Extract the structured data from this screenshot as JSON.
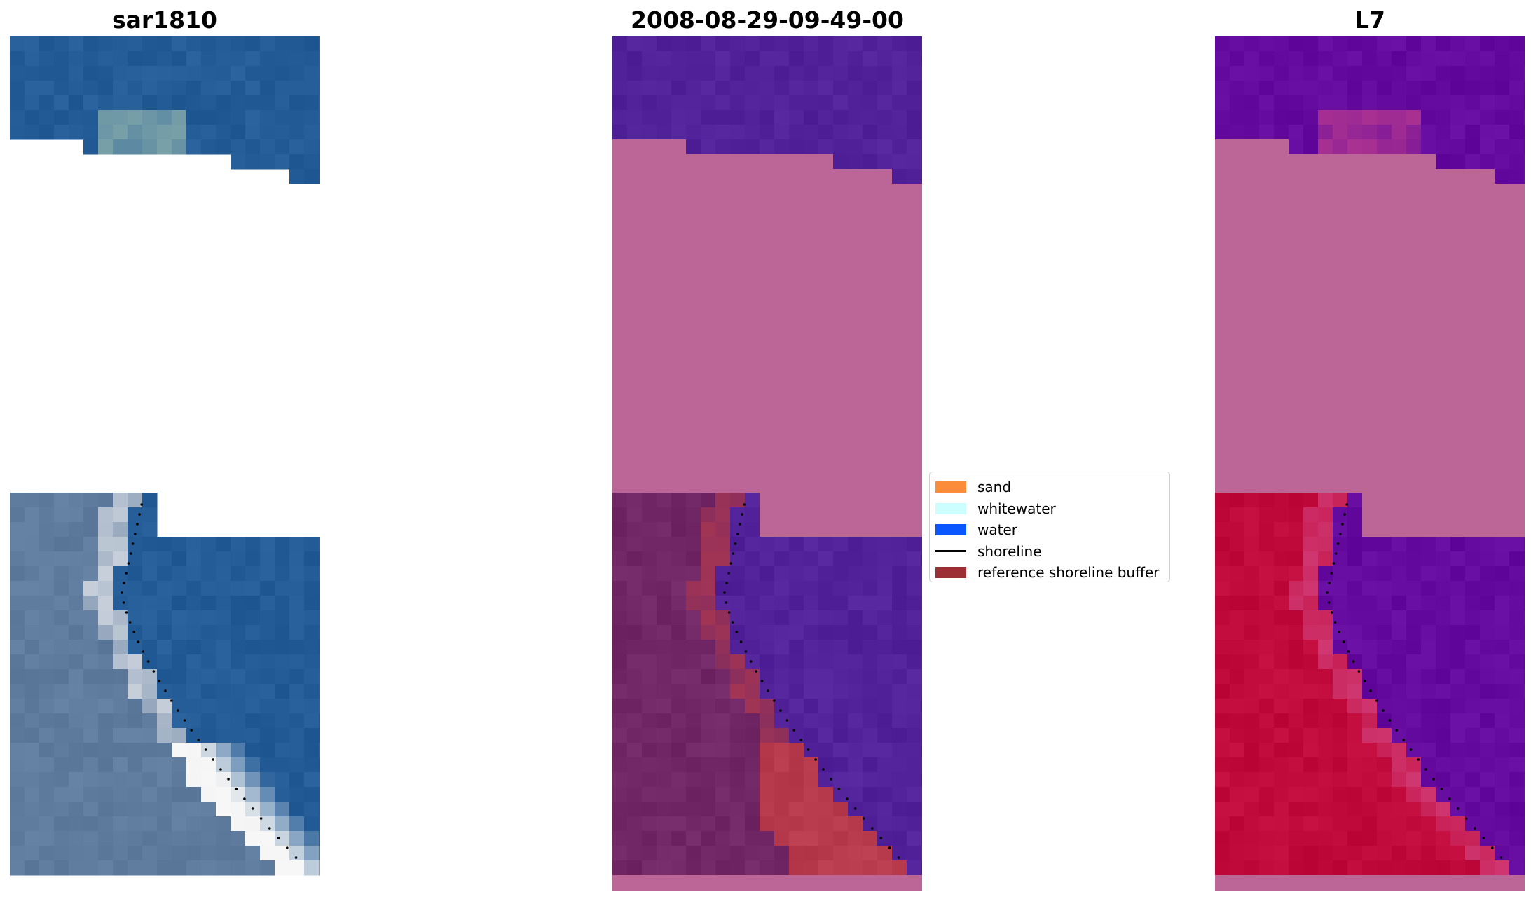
{
  "panels": [
    {
      "title": "sar1810",
      "colors": [
        "#235c96",
        "#8fb2ad",
        "#5f7b9e",
        "#f4f4f4"
      ]
    },
    {
      "title": "2008-08-29-09-49-00",
      "colors": [
        "#52229a",
        "#bc6697",
        "#712765",
        "#b73b4d"
      ]
    },
    {
      "title": "L7",
      "colors": [
        "#640a9e",
        "#bc6697",
        "#c10a3c",
        "#d64b88"
      ]
    }
  ],
  "legend": {
    "items": [
      {
        "label": "sand",
        "color": "#fb8c3a",
        "kind": "patch"
      },
      {
        "label": "whitewater",
        "color": "#ccfdff",
        "kind": "patch"
      },
      {
        "label": "water",
        "color": "#0a56ff",
        "kind": "patch"
      },
      {
        "label": "shoreline",
        "color": "#000000",
        "kind": "line"
      },
      {
        "label": "reference shoreline buffer",
        "color": "#9b2f35",
        "kind": "patch"
      }
    ]
  }
}
